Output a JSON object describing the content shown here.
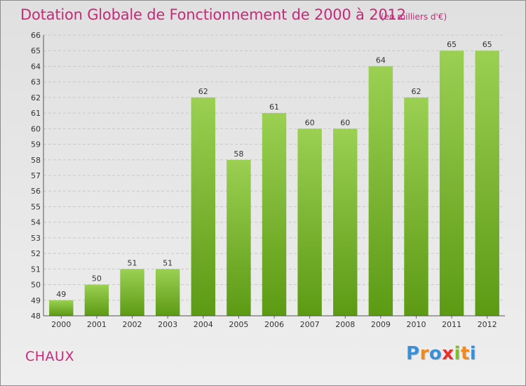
{
  "colors": {
    "accent": "#c8287a",
    "bar_top": "#9bd052",
    "bar_bottom": "#5c9a14",
    "grid": "#c8c8c8"
  },
  "place_name": "CHAUX",
  "logo": {
    "letters": [
      "P",
      "r",
      "o",
      "x",
      "i",
      "t",
      "i"
    ],
    "colors": [
      "#3a8fd6",
      "#f08a1c",
      "#3a8fd6",
      "#e8302c",
      "#7bbf2a",
      "#f08a1c",
      "#3a8fd6"
    ]
  },
  "chart_data": {
    "type": "bar",
    "title": "Dotation Globale de Fonctionnement de 2000 à 2012",
    "subtitle": "(en milliers d'€)",
    "categories": [
      "2000",
      "2001",
      "2002",
      "2003",
      "2004",
      "2005",
      "2006",
      "2007",
      "2008",
      "2009",
      "2010",
      "2011",
      "2012"
    ],
    "values": [
      49,
      50,
      51,
      51,
      62,
      58,
      61,
      60,
      60,
      64,
      62,
      65,
      65
    ],
    "ylim": [
      48,
      66
    ],
    "yticks": [
      48,
      49,
      50,
      51,
      52,
      53,
      54,
      55,
      56,
      57,
      58,
      59,
      60,
      61,
      62,
      63,
      64,
      65,
      66
    ],
    "grid": true
  }
}
